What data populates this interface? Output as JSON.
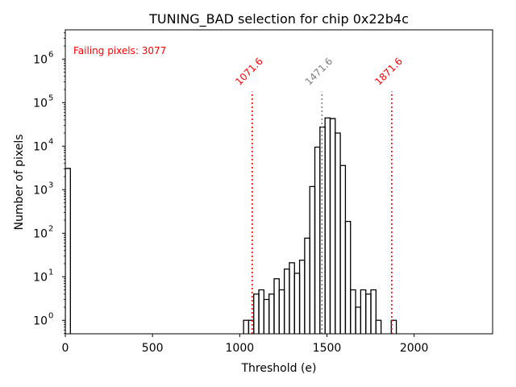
{
  "chart_data": {
    "type": "histogram",
    "title": "TUNING_BAD selection for chip 0x22b4c",
    "xlabel": "Threshold (e)",
    "ylabel": "Number of pixels",
    "xlim": [
      0,
      2450
    ],
    "ylim": [
      0.49,
      4700000
    ],
    "yscale": "log",
    "grid": false,
    "x_ticks": [
      0,
      500,
      1000,
      1500,
      2000
    ],
    "x_tick_labels": [
      "0",
      "500",
      "1000",
      "1500",
      "2000"
    ],
    "y_ticks": [
      1,
      10,
      100,
      1000,
      10000,
      100000,
      1000000
    ],
    "y_tick_labels": [
      {
        "base": "10",
        "exp": "0"
      },
      {
        "base": "10",
        "exp": "1"
      },
      {
        "base": "10",
        "exp": "2"
      },
      {
        "base": "10",
        "exp": "3"
      },
      {
        "base": "10",
        "exp": "4"
      },
      {
        "base": "10",
        "exp": "5"
      },
      {
        "base": "10",
        "exp": "6"
      }
    ],
    "bin_width": 29.2,
    "bins": [
      {
        "start": 0,
        "count": 3077
      },
      {
        "start": 1022,
        "count": 1
      },
      {
        "start": 1051.2,
        "count": 1
      },
      {
        "start": 1080.4,
        "count": 4
      },
      {
        "start": 1109.6,
        "count": 5
      },
      {
        "start": 1138.8,
        "count": 3
      },
      {
        "start": 1168,
        "count": 4
      },
      {
        "start": 1197.2,
        "count": 9
      },
      {
        "start": 1226.4,
        "count": 5
      },
      {
        "start": 1255.6,
        "count": 15
      },
      {
        "start": 1284.8,
        "count": 21
      },
      {
        "start": 1314,
        "count": 12
      },
      {
        "start": 1343.2,
        "count": 24
      },
      {
        "start": 1372.4,
        "count": 77
      },
      {
        "start": 1401.6,
        "count": 1180
      },
      {
        "start": 1430.8,
        "count": 9500
      },
      {
        "start": 1460,
        "count": 27500
      },
      {
        "start": 1489.2,
        "count": 44500
      },
      {
        "start": 1518.4,
        "count": 43000
      },
      {
        "start": 1547.6,
        "count": 20000
      },
      {
        "start": 1576.8,
        "count": 3600
      },
      {
        "start": 1606,
        "count": 187
      },
      {
        "start": 1635.2,
        "count": 5
      },
      {
        "start": 1664.4,
        "count": 2
      },
      {
        "start": 1693.6,
        "count": 5
      },
      {
        "start": 1722.8,
        "count": 4
      },
      {
        "start": 1752,
        "count": 5
      },
      {
        "start": 1781.2,
        "count": 1
      },
      {
        "start": 1810.4,
        "count": 0
      },
      {
        "start": 1839.6,
        "count": 0
      },
      {
        "start": 1868.8,
        "count": 1
      }
    ],
    "annotations": {
      "failing_text": "Failing pixels: 3077",
      "failing_color": "#ff0000",
      "lines": [
        {
          "x": 1071.6,
          "label": "1071.6",
          "color": "#ff0000"
        },
        {
          "x": 1471.6,
          "label": "1471.6",
          "color": "#808080"
        },
        {
          "x": 1871.6,
          "label": "1871.6",
          "color": "#ff0000"
        }
      ],
      "line_top_value": 180000
    },
    "hist_color": "#000000"
  }
}
